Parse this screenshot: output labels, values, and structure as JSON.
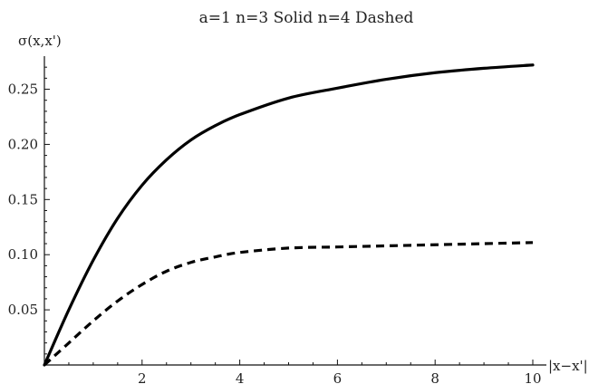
{
  "chart_data": {
    "type": "line",
    "title": "a=1 n=3 Solid n=4 Dashed",
    "xlabel": "|x−x'|",
    "ylabel": "σ(x,x')",
    "xlim": [
      0,
      10
    ],
    "ylim": [
      0,
      0.28
    ],
    "grid": false,
    "legend": "none",
    "x_ticks": [
      2,
      4,
      6,
      8,
      10
    ],
    "y_ticks": [
      0.05,
      0.1,
      0.15,
      0.2,
      0.25
    ],
    "y_tick_labels": [
      "0.05",
      "0.10",
      "0.15",
      "0.20",
      "0.25"
    ],
    "series": [
      {
        "style": "solid",
        "color": "#000000",
        "x": [
          0,
          0.5,
          1,
          1.5,
          2,
          2.5,
          3,
          3.5,
          4,
          5,
          6,
          7,
          8,
          9,
          10
        ],
        "y": [
          0,
          0.05,
          0.095,
          0.133,
          0.163,
          0.186,
          0.204,
          0.217,
          0.227,
          0.242,
          0.251,
          0.259,
          0.265,
          0.269,
          0.272
        ]
      },
      {
        "style": "dashed",
        "color": "#000000",
        "x": [
          0,
          0.5,
          1,
          1.5,
          2,
          2.5,
          3,
          3.5,
          4,
          5,
          6,
          7,
          8,
          9,
          10
        ],
        "y": [
          0,
          0.02,
          0.04,
          0.058,
          0.073,
          0.085,
          0.093,
          0.098,
          0.102,
          0.106,
          0.107,
          0.108,
          0.109,
          0.11,
          0.111
        ]
      }
    ]
  }
}
